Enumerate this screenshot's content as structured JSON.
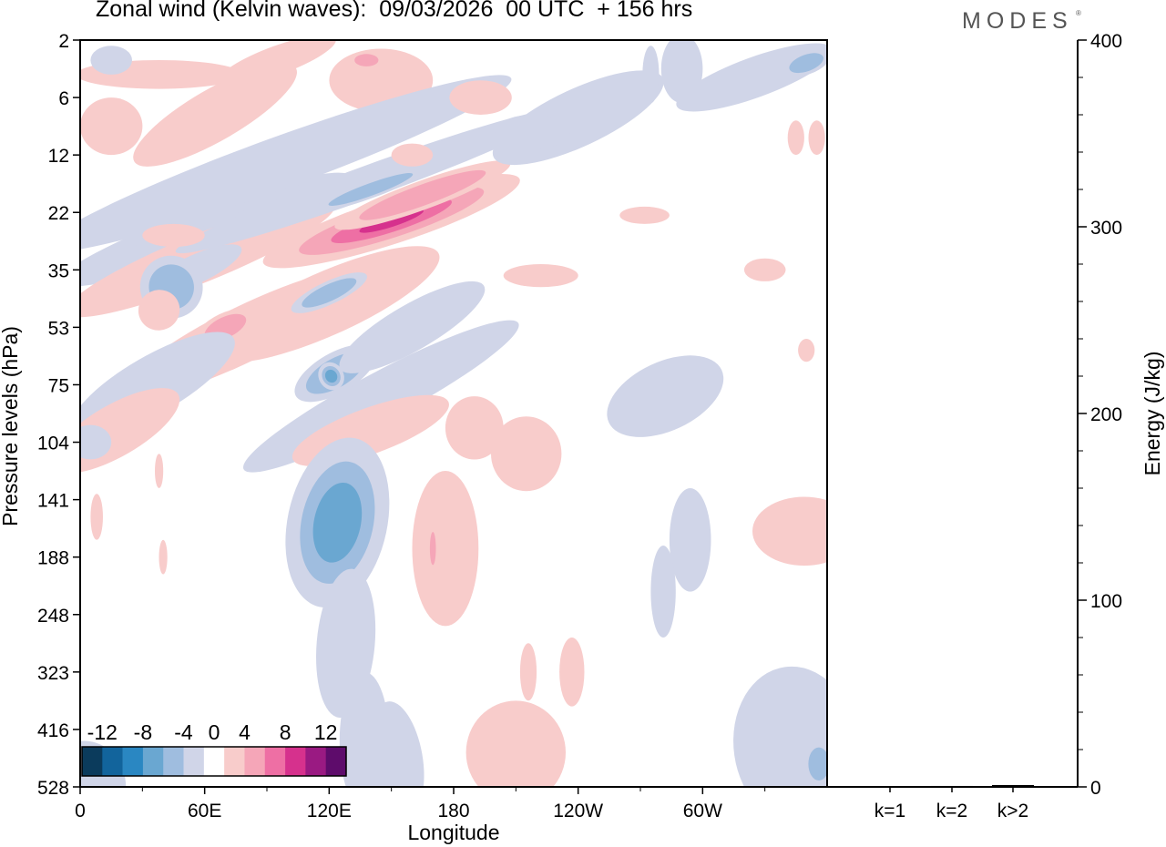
{
  "title": "Zonal wind (Kelvin waves):  09/03/2026  00 UTC  + 156 hrs",
  "brand": "MODES",
  "brand_mark": "®",
  "chart_data": [
    {
      "type": "heatmap",
      "variable": "Zonal wind (Kelvin waves)",
      "xlabel": "Longitude",
      "ylabel": "Pressure levels (hPa)",
      "x_ticks": [
        "0",
        "60E",
        "120E",
        "180",
        "120W",
        "60W"
      ],
      "x_range_deg": [
        0,
        360
      ],
      "y_ticks": [
        "2",
        "6",
        "12",
        "22",
        "35",
        "53",
        "75",
        "104",
        "141",
        "188",
        "248",
        "323",
        "416",
        "528"
      ],
      "colorbar": {
        "tick_labels": [
          "-12",
          "-8",
          "-4",
          "0",
          "4",
          "8",
          "12"
        ],
        "levels": [
          -14,
          -12,
          -10,
          -8,
          -6,
          -4,
          -2,
          2,
          4,
          6,
          8,
          10,
          12,
          14
        ],
        "colors": [
          "#0b3b5c",
          "#12649c",
          "#2a87c2",
          "#6aa7d1",
          "#9fbddf",
          "#d0d5e8",
          "#ffffff",
          "#f8cccb",
          "#f5a6b8",
          "#ee6fa4",
          "#d6318d",
          "#9a1a82",
          "#5e0c6b"
        ]
      },
      "features": [
        {
          "kind": "negative",
          "level": 1,
          "lon": 60,
          "level_index": 3.3,
          "note": "upward-sloping easterly band"
        },
        {
          "kind": "negative",
          "level": 3,
          "lon": 124,
          "level_index": 8.4,
          "note": "easterly core ~ -8"
        },
        {
          "kind": "positive",
          "level": 4,
          "lon": 151,
          "level_index": 3.1,
          "note": "westerly core ~ +8"
        },
        {
          "kind": "positive",
          "level": 1,
          "lon": 210,
          "level_index": 12.4,
          "note": "lower westerly"
        },
        {
          "kind": "negative",
          "level": 1,
          "lon": 360,
          "level_index": 12.3,
          "note": "lower easterly"
        }
      ]
    },
    {
      "type": "bar",
      "categories": [
        "k=1",
        "k=2",
        "k>2"
      ],
      "values": [
        0.3,
        0.5,
        1.0
      ],
      "ylabel": "Energy (J/kg)",
      "ylim": [
        0,
        400
      ],
      "y_ticks": [
        "0",
        "100",
        "200",
        "300",
        "400"
      ]
    }
  ]
}
